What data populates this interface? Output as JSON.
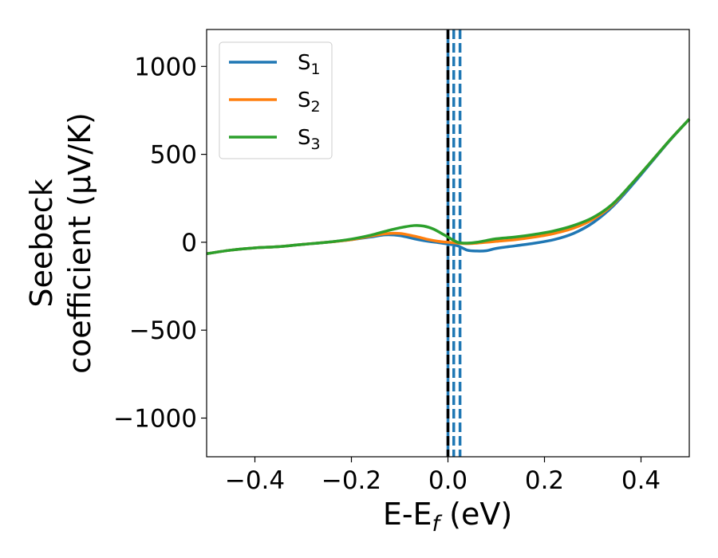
{
  "chart_data": {
    "type": "line",
    "title": "",
    "xlabel_main": "E-E",
    "xlabel_sub": "f",
    "xlabel_tail": " (eV)",
    "ylabel_line1": "Seebeck",
    "ylabel_line2": "coefficient  (μV/K)",
    "xlim": [
      -0.5,
      0.5
    ],
    "ylim": [
      -1220,
      1210
    ],
    "x_ticks": [
      -0.4,
      -0.2,
      0.0,
      0.2,
      0.4
    ],
    "x_tick_labels": [
      "−0.4",
      "−0.2",
      "0.0",
      "0.2",
      "0.4"
    ],
    "y_ticks": [
      -1000,
      -500,
      0,
      500,
      1000
    ],
    "y_tick_labels": [
      "−1000",
      "−500",
      "0",
      "500",
      "1000"
    ],
    "grid": false,
    "legend_position": "top-left",
    "series": [
      {
        "name": "S",
        "subscript": "1",
        "color": "#1f77b4",
        "x": [
          -0.5,
          -0.45,
          -0.4,
          -0.35,
          -0.3,
          -0.25,
          -0.2,
          -0.16,
          -0.13,
          -0.1,
          -0.07,
          -0.04,
          -0.02,
          0.0,
          0.02,
          0.04,
          0.06,
          0.08,
          0.1,
          0.14,
          0.18,
          0.22,
          0.26,
          0.3,
          0.34,
          0.38,
          0.42,
          0.46,
          0.5
        ],
        "y": [
          -65,
          -45,
          -32,
          -25,
          -12,
          0,
          15,
          30,
          42,
          38,
          20,
          5,
          -2,
          -10,
          -20,
          -45,
          -50,
          -48,
          -35,
          -20,
          -5,
          15,
          50,
          110,
          200,
          320,
          450,
          580,
          700
        ]
      },
      {
        "name": "S",
        "subscript": "2",
        "color": "#ff7f0e",
        "x": [
          -0.5,
          -0.45,
          -0.4,
          -0.35,
          -0.3,
          -0.25,
          -0.2,
          -0.16,
          -0.13,
          -0.1,
          -0.07,
          -0.04,
          -0.02,
          0.0,
          0.02,
          0.04,
          0.06,
          0.08,
          0.1,
          0.14,
          0.18,
          0.22,
          0.26,
          0.3,
          0.34,
          0.38,
          0.42,
          0.46,
          0.5
        ],
        "y": [
          -65,
          -45,
          -32,
          -25,
          -12,
          0,
          15,
          35,
          48,
          50,
          35,
          15,
          5,
          0,
          -5,
          -8,
          -5,
          0,
          5,
          15,
          30,
          50,
          80,
          130,
          210,
          330,
          455,
          582,
          700
        ]
      },
      {
        "name": "S",
        "subscript": "3",
        "color": "#2ca02c",
        "x": [
          -0.5,
          -0.45,
          -0.4,
          -0.35,
          -0.3,
          -0.25,
          -0.2,
          -0.16,
          -0.13,
          -0.1,
          -0.07,
          -0.05,
          -0.03,
          -0.01,
          0.0,
          0.02,
          0.04,
          0.06,
          0.08,
          0.1,
          0.14,
          0.18,
          0.22,
          0.26,
          0.3,
          0.34,
          0.38,
          0.42,
          0.46,
          0.5
        ],
        "y": [
          -65,
          -45,
          -32,
          -25,
          -12,
          0,
          18,
          40,
          62,
          82,
          95,
          92,
          75,
          45,
          30,
          0,
          -5,
          0,
          10,
          20,
          30,
          45,
          65,
          95,
          140,
          215,
          330,
          455,
          582,
          700
        ]
      }
    ],
    "vertical_lines": [
      {
        "x": 0.0,
        "color": "#1f77b4",
        "style": "solid"
      },
      {
        "x": 0.0,
        "color": "#000000",
        "style": "dashed"
      },
      {
        "x": 0.012,
        "color": "#1f77b4",
        "style": "dashed"
      },
      {
        "x": 0.025,
        "color": "#1f77b4",
        "style": "dashed"
      }
    ]
  }
}
